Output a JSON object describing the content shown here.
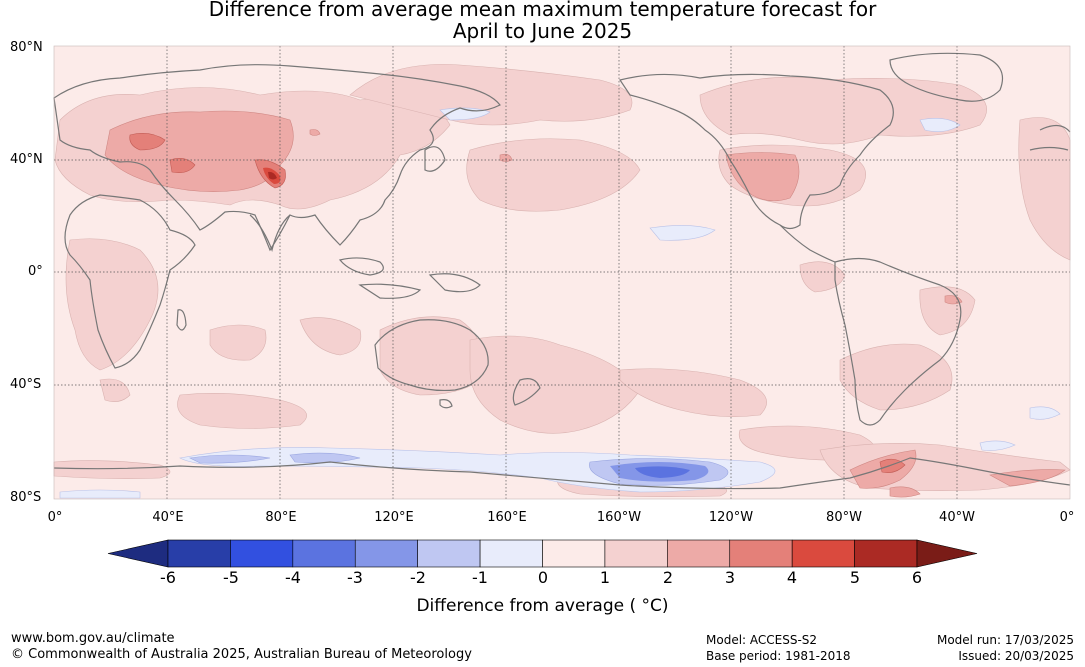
{
  "title_line1": "Difference from average mean maximum temperature forecast for",
  "title_line2": "April to June 2025",
  "lat_labels": [
    "80°N",
    "40°N",
    "0°",
    "40°S",
    "80°S"
  ],
  "lon_labels": [
    "0°",
    "40°E",
    "80°E",
    "120°E",
    "160°E",
    "160°W",
    "120°W",
    "80°W",
    "40°W",
    "0°"
  ],
  "colorbar": {
    "ticks": [
      "-6",
      "-5",
      "-4",
      "-3",
      "-2",
      "-1",
      "0",
      "1",
      "2",
      "3",
      "4",
      "5",
      "6"
    ],
    "label": "Difference from average ( °C)",
    "colors": [
      "#283ea8",
      "#3250e0",
      "#5b73e0",
      "#8496e8",
      "#bfc7f2",
      "#e8ecfb",
      "#fcebe9",
      "#f4d1d0",
      "#edaaa7",
      "#e48079",
      "#da4a3e",
      "#ab2a24"
    ],
    "under_color": "#1e2c80",
    "over_color": "#7a1c17"
  },
  "footer": {
    "url": "www.bom.gov.au/climate",
    "copyright": "© Commonwealth of Australia 2025, Australian Bureau of Meteorology",
    "model": "Model: ACCESS-S2",
    "base_period": "Base period: 1981-2018",
    "model_run": "Model run: 17/03/2025",
    "issued": "Issued: 20/03/2025"
  }
}
